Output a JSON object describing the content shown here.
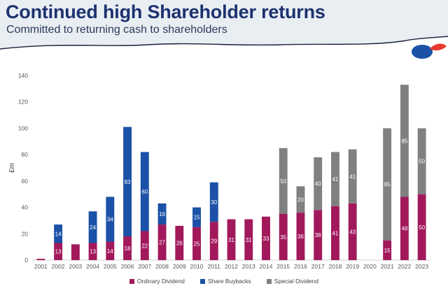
{
  "header": {
    "title": "Continued high Shareholder returns",
    "subtitle": "Committed to returning cash to shareholders"
  },
  "colors": {
    "ordinary": "#a2195b",
    "buyback": "#1b51a7",
    "special": "#808080",
    "title": "#1e3270"
  },
  "chart_data": {
    "type": "bar",
    "stacked": true,
    "ylabel": "£m",
    "ylim": [
      0,
      140
    ],
    "yticks": [
      0,
      20,
      40,
      60,
      80,
      100,
      120,
      140
    ],
    "grid": false,
    "legend_position": "bottom",
    "categories": [
      "2001",
      "2002",
      "2003",
      "2004",
      "2005",
      "2006",
      "2007",
      "2008",
      "2009",
      "2010",
      "2011",
      "2012",
      "2013",
      "2014",
      "2015",
      "2016",
      "2017",
      "2018",
      "2019",
      "2020",
      "2021",
      "2022",
      "2023"
    ],
    "series": [
      {
        "name": "Ordinary Dividend",
        "values": [
          1,
          13,
          12,
          13,
          14,
          18,
          22,
          27,
          26,
          25,
          29,
          31,
          31,
          33,
          35,
          36,
          38,
          41,
          43,
          0,
          15,
          48,
          50
        ]
      },
      {
        "name": "Share Buybacks",
        "values": [
          0,
          14,
          0,
          24,
          34,
          83,
          60,
          16,
          0,
          15,
          30,
          0,
          0,
          0,
          0,
          0,
          0,
          0,
          0,
          0,
          0,
          0,
          0
        ]
      },
      {
        "name": "Special Dividend",
        "values": [
          0,
          0,
          0,
          0,
          0,
          0,
          0,
          0,
          0,
          0,
          0,
          0,
          0,
          0,
          50,
          20,
          40,
          41,
          41,
          0,
          85,
          85,
          50
        ]
      }
    ],
    "data_labels": [
      [
        null,
        "13",
        null,
        "13",
        "14",
        "18",
        "22",
        "27",
        "26",
        "25",
        "29",
        "31",
        "31",
        "33",
        "35",
        "36",
        "38",
        "41",
        "43",
        null,
        "15",
        "48",
        "50"
      ],
      [
        null,
        "14",
        null,
        "24",
        "34",
        "83",
        "60",
        "16",
        null,
        "15",
        "30",
        null,
        null,
        null,
        null,
        null,
        null,
        null,
        null,
        null,
        null,
        null,
        null
      ],
      [
        null,
        null,
        null,
        null,
        null,
        null,
        null,
        null,
        null,
        null,
        null,
        null,
        null,
        null,
        "50",
        "20",
        "40",
        "41",
        "41",
        null,
        "85",
        "85",
        "50"
      ]
    ]
  }
}
